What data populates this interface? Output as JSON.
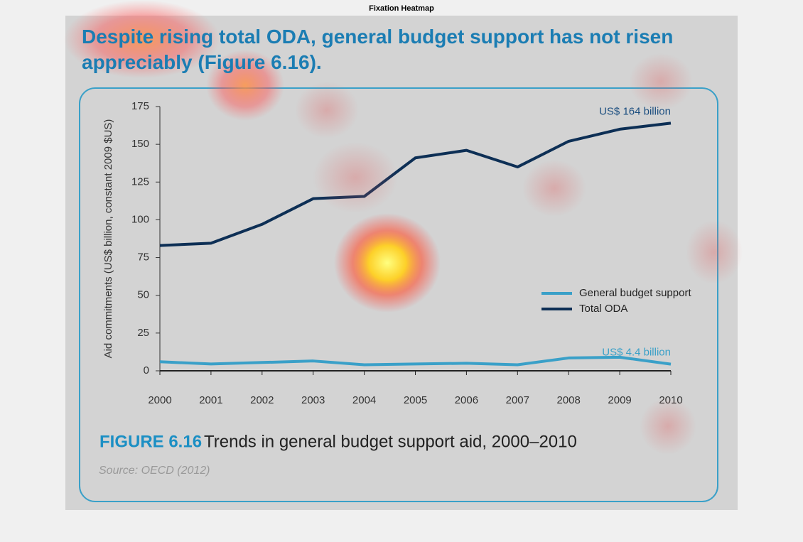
{
  "page_title": "Fixation Heatmap",
  "chart_data": {
    "type": "line",
    "title": "Despite rising total ODA, general budget support has not risen appreciably (Figure 6.16).",
    "y_label": "Aid commitments (US$ billion, constant 2009 $US)",
    "x": [
      2000,
      2001,
      2002,
      2003,
      2004,
      2005,
      2006,
      2007,
      2008,
      2009,
      2010
    ],
    "xlim": [
      2000,
      2010
    ],
    "xticks": [
      2000,
      2001,
      2002,
      2003,
      2004,
      2005,
      2006,
      2007,
      2008,
      2009,
      2010
    ],
    "ylim": [
      0,
      175
    ],
    "yticks": [
      0,
      25,
      50,
      75,
      100,
      125,
      150,
      175
    ],
    "grid": false,
    "legend": "right",
    "series": [
      {
        "name": "General budget support",
        "color": "#3aa0c8",
        "values": [
          6,
          4.5,
          5.5,
          6.5,
          4,
          4.5,
          5,
          4,
          8.5,
          9,
          4.4
        ]
      },
      {
        "name": "Total ODA",
        "color": "#0d2f55",
        "values": [
          83,
          84.5,
          97,
          114,
          115.5,
          141,
          146,
          135,
          152,
          160,
          164
        ]
      }
    ],
    "annotations": [
      {
        "text": "US$ 164 billion",
        "series": 1
      },
      {
        "text": "US$ 4.4 billion",
        "series": 0
      }
    ],
    "figure_label": "FIGURE 6.16",
    "caption": "Trends in general budget support aid, 2000–2010",
    "source": "Source: OECD (2012)"
  }
}
